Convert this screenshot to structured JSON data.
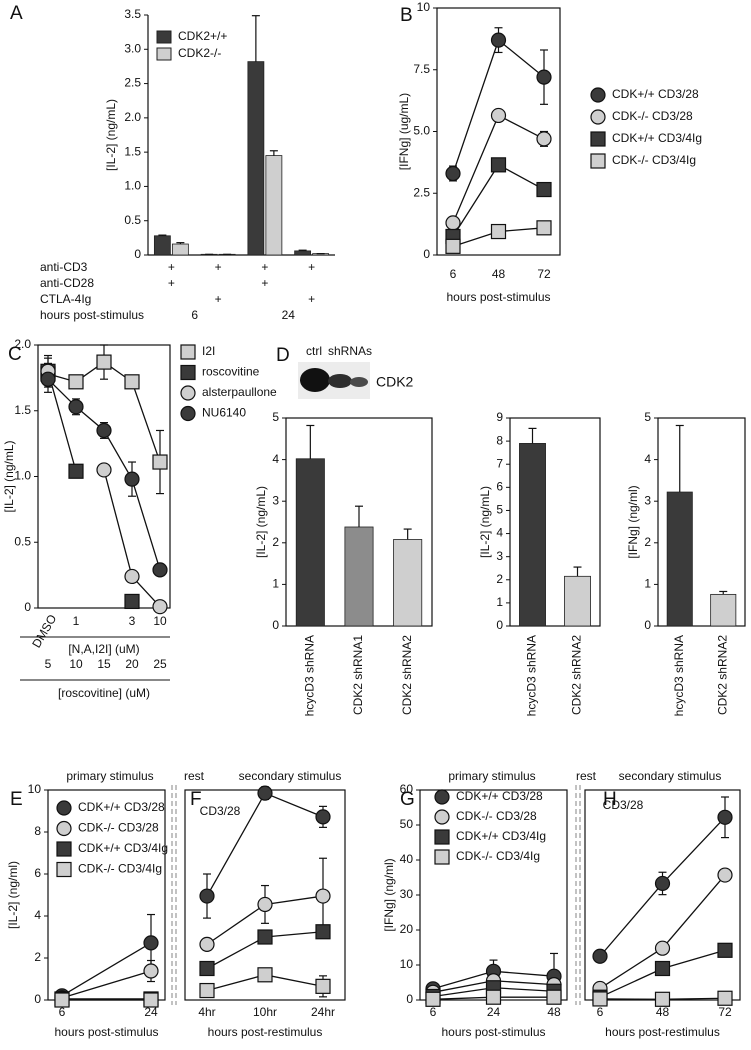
{
  "chart_data": [
    {
      "panel": "A",
      "type": "bar",
      "ylabel": "[IL-2] (ng/mL)",
      "ylim": [
        0,
        3.5
      ],
      "yticks": [
        0,
        0.5,
        {
          "value": 1,
          "label": "1.0"
        },
        1.5,
        {
          "value": 2,
          "label": "2.0"
        },
        2.5,
        {
          "value": 3,
          "label": "3.0"
        },
        3.5
      ],
      "categories": [
        null,
        null,
        null,
        null
      ],
      "series": [
        {
          "name": "CDK2+/+",
          "color": "#3a3a3a",
          "values": [
            0.28,
            0.01,
            2.82,
            0.06
          ],
          "errors": [
            0.01,
            0,
            0.67,
            0.01
          ]
        },
        {
          "name": "CDK2-/-",
          "color": "#cfcfcf",
          "values": [
            0.16,
            0.01,
            1.45,
            0.02
          ],
          "errors": [
            0.02,
            0,
            0.07,
            0
          ]
        }
      ],
      "legend": "upper left",
      "condition_table": [
        {
          "label": "anti-CD3",
          "marks": [
            "+",
            "+",
            "+",
            "+"
          ]
        },
        {
          "label": "anti-CD28",
          "marks": [
            "+",
            null,
            "+",
            null
          ]
        },
        {
          "label": "CTLA-4Ig",
          "marks": [
            null,
            "+",
            null,
            "+"
          ]
        }
      ],
      "hours_label": "hours post-stimulus",
      "hours": [
        "6",
        "24"
      ]
    },
    {
      "panel": "B",
      "type": "line",
      "ylabel": "[IFNg] (ug/mL)",
      "xlabel": "hours post-stimulus",
      "ylim": [
        0,
        10
      ],
      "yticks": [
        0,
        2.5,
        {
          "value": 5,
          "label": "5.0"
        },
        7.5,
        10
      ],
      "categories": [
        "6",
        "48",
        "72"
      ],
      "series": [
        {
          "name": "CDK+/+ CD3/28",
          "color": "#3a3a3a",
          "marker": "circle",
          "values": [
            3.3,
            8.7,
            7.2
          ],
          "errors": [
            0.3,
            0.5,
            1.1
          ]
        },
        {
          "name": "CDK-/- CD3/28",
          "color": "#cfcfcf",
          "marker": "circle",
          "values": [
            1.3,
            5.65,
            4.7
          ],
          "errors": [
            0.1,
            0.1,
            0.3
          ]
        },
        {
          "name": "CDK+/+ CD3/4Ig",
          "color": "#3a3a3a",
          "marker": "square",
          "values": [
            0.75,
            3.65,
            2.65
          ],
          "errors": [
            0.1,
            0.1,
            0.1
          ]
        },
        {
          "name": "CDK-/- CD3/4Ig",
          "color": "#cfcfcf",
          "marker": "square",
          "values": [
            0.35,
            0.95,
            1.1
          ],
          "errors": [
            0.05,
            0.05,
            0.1
          ]
        }
      ],
      "legend": "right"
    },
    {
      "panel": "C",
      "type": "line",
      "ylabel": "[IL-2] (ng/mL)",
      "xlabel": "[N,A,I2I] (uM)",
      "xlabel2": "[roscovitine] (uM)",
      "ylim": [
        0,
        2
      ],
      "yticks": [
        0,
        0.5,
        {
          "value": 1,
          "label": "1.0"
        },
        1.5,
        {
          "value": 2,
          "label": "2.0"
        }
      ],
      "categories": [
        "DMSO",
        "1",
        null,
        "3",
        "10"
      ],
      "categories2": [
        "5",
        "10",
        "15",
        "20",
        "25"
      ],
      "series": [
        {
          "name": "I2I",
          "color": "#cfcfcf",
          "marker": "square",
          "values": [
            1.78,
            1.72,
            1.87,
            1.72,
            1.11
          ],
          "errors": [
            0.08,
            0.04,
            0.13,
            0.04,
            0.24
          ]
        },
        {
          "name": "roscovitine",
          "color": "#3a3a3a",
          "marker": "square",
          "values": [
            1.8,
            1.04,
            null,
            0.05,
            null
          ],
          "errors": [
            0.1,
            0.03,
            null,
            0.02,
            null
          ]
        },
        {
          "name": "alsterpaullone",
          "color": "#cfcfcf",
          "marker": "circle",
          "values": [
            1.8,
            null,
            1.05,
            0.24,
            0.01
          ],
          "errors": [
            0.12,
            null,
            0.03,
            0.02,
            0.01
          ]
        },
        {
          "name": "NU6140",
          "color": "#3a3a3a",
          "marker": "circle",
          "values": [
            1.74,
            1.53,
            1.35,
            0.98,
            0.29
          ],
          "errors": [
            0.1,
            0.06,
            0.06,
            0.13,
            0.02
          ]
        }
      ],
      "legend": "right"
    },
    {
      "panel": "D",
      "type": "bar",
      "ylabel": "[IL-2] (ng/mL)",
      "ylim": [
        0,
        5
      ],
      "yticks": [
        0,
        1,
        2,
        3,
        4,
        5
      ],
      "categories": [
        "hcycD3 shRNA",
        "CDK2 shRNA1",
        "CDK2 shRNA2"
      ],
      "values": [
        4.02,
        2.38,
        2.08
      ],
      "errors": [
        0.8,
        0.5,
        0.25
      ],
      "colors": [
        "#3a3a3a",
        "#8c8c8c",
        "#cfcfcf"
      ]
    },
    {
      "type": "bar",
      "ylabel": "[IL-2] (ng/mL)",
      "ylim": [
        0,
        9
      ],
      "yticks": [
        0,
        1,
        2,
        3,
        4,
        5,
        6,
        7,
        8,
        9
      ],
      "categories": [
        "hcycD3 shRNA",
        "CDK2 shRNA2"
      ],
      "values": [
        7.9,
        2.15
      ],
      "errors": [
        0.65,
        0.4
      ],
      "colors": [
        "#3a3a3a",
        "#cfcfcf"
      ]
    },
    {
      "type": "bar",
      "ylabel": "[IFNg] (ng/ml)",
      "ylim": [
        0,
        5
      ],
      "yticks": [
        0,
        1,
        2,
        3,
        4,
        5
      ],
      "categories": [
        "hcycD3 shRNA",
        "CDK2 shRNA2"
      ],
      "values": [
        3.22,
        0.76
      ],
      "errors": [
        1.6,
        0.07
      ],
      "colors": [
        "#3a3a3a",
        "#cfcfcf"
      ]
    },
    {
      "panel": "E",
      "type": "line",
      "ylabel": "[IL-2] (ng/ml)",
      "xlabel": "hours post-stimulus",
      "annotation": "primary stimulus",
      "gap_label": "rest",
      "ylim": [
        0,
        10
      ],
      "yticks": [
        0,
        2,
        4,
        6,
        8,
        10
      ],
      "categories": [
        "6",
        "24"
      ],
      "series": [
        {
          "name": "CDK+/+ CD3/28",
          "color": "#3a3a3a",
          "marker": "circle",
          "values": [
            0.2,
            2.72
          ],
          "errors": [
            0.1,
            1.35
          ]
        },
        {
          "name": "CDK-/- CD3/28",
          "color": "#cfcfcf",
          "marker": "circle",
          "values": [
            0.1,
            1.38
          ],
          "errors": [
            0.05,
            0.5
          ]
        },
        {
          "name": "CDK+/+ CD3/4Ig",
          "color": "#3a3a3a",
          "marker": "square",
          "values": [
            0.05,
            0.05
          ],
          "errors": [
            0.02,
            0.02
          ]
        },
        {
          "name": "CDK-/- CD3/4Ig",
          "color": "#cfcfcf",
          "marker": "square",
          "values": [
            0,
            0
          ],
          "errors": [
            0.02,
            0.02
          ]
        }
      ],
      "legend": "upper left"
    },
    {
      "panel": "F",
      "type": "line",
      "xlabel": "hours post-restimulus",
      "annotation": "secondary stimulus",
      "condition": "CD3/28",
      "ylim": [
        0,
        10
      ],
      "categories": [
        "4hr",
        "10hr",
        "24hr"
      ],
      "series": [
        {
          "color": "#3a3a3a",
          "marker": "circle",
          "values": [
            4.95,
            9.85,
            8.72
          ],
          "errors": [
            1.05,
            0.3,
            0.5
          ]
        },
        {
          "color": "#cfcfcf",
          "marker": "circle",
          "values": [
            2.65,
            4.55,
            4.95
          ],
          "errors": [
            0.2,
            0.9,
            1.8
          ]
        },
        {
          "color": "#3a3a3a",
          "marker": "square",
          "values": [
            1.5,
            3.0,
            3.25
          ],
          "errors": [
            0.1,
            0.1,
            0.1
          ]
        },
        {
          "color": "#cfcfcf",
          "marker": "square",
          "values": [
            0.45,
            1.2,
            0.65
          ],
          "errors": [
            0.05,
            0.1,
            0.5
          ]
        }
      ]
    },
    {
      "panel": "G",
      "type": "line",
      "ylabel": "[IFNg] (ng/ml)",
      "xlabel": "hours post-stimulus",
      "annotation": "primary stimulus",
      "gap_label": "rest",
      "ylim": [
        0,
        60
      ],
      "yticks": [
        0,
        10,
        20,
        30,
        40,
        50,
        60
      ],
      "categories": [
        "6",
        "24",
        "48"
      ],
      "series": [
        {
          "name": "CDK+/+ CD3/28",
          "color": "#3a3a3a",
          "marker": "circle",
          "values": [
            3.2,
            8.2,
            6.8
          ],
          "errors": [
            1.5,
            3.2,
            6.5
          ]
        },
        {
          "name": "CDK-/- CD3/28",
          "color": "#cfcfcf",
          "marker": "circle",
          "values": [
            2.2,
            5.5,
            4.4
          ],
          "errors": [
            0.8,
            1.5,
            1.2
          ]
        },
        {
          "name": "CDK+/+ CD3/4Ig",
          "color": "#3a3a3a",
          "marker": "square",
          "values": [
            1.0,
            3.5,
            2.5
          ],
          "errors": [
            0.3,
            0.8,
            0.6
          ]
        },
        {
          "name": "CDK-/- CD3/4Ig",
          "color": "#cfcfcf",
          "marker": "square",
          "values": [
            0.2,
            0.8,
            0.8
          ],
          "errors": [
            0.1,
            0.2,
            0.2
          ]
        }
      ],
      "legend": "upper left"
    },
    {
      "panel": "H",
      "type": "line",
      "xlabel": "hours post-restimulus",
      "annotation": "secondary stimulus",
      "condition": "CD3/28",
      "ylim": [
        0,
        60
      ],
      "categories": [
        "6",
        "48",
        "72"
      ],
      "series": [
        {
          "color": "#3a3a3a",
          "marker": "circle",
          "values": [
            12.5,
            33.3,
            52.2
          ],
          "errors": [
            0.5,
            3.2,
            5.8
          ]
        },
        {
          "color": "#cfcfcf",
          "marker": "circle",
          "values": [
            3.3,
            14.8,
            35.7
          ],
          "errors": [
            0.3,
            0.6,
            0.8
          ]
        },
        {
          "color": "#3a3a3a",
          "marker": "square",
          "values": [
            0.8,
            9.0,
            14.2
          ],
          "errors": [
            0.2,
            0.5,
            0.6
          ]
        },
        {
          "color": "#cfcfcf",
          "marker": "square",
          "values": [
            0.3,
            0.2,
            0.5
          ],
          "errors": [
            0.1,
            0.1,
            0.1
          ]
        }
      ]
    }
  ],
  "blot": {
    "lanes": [
      "ctrl",
      "shRNAs"
    ],
    "protein": "CDK2"
  }
}
